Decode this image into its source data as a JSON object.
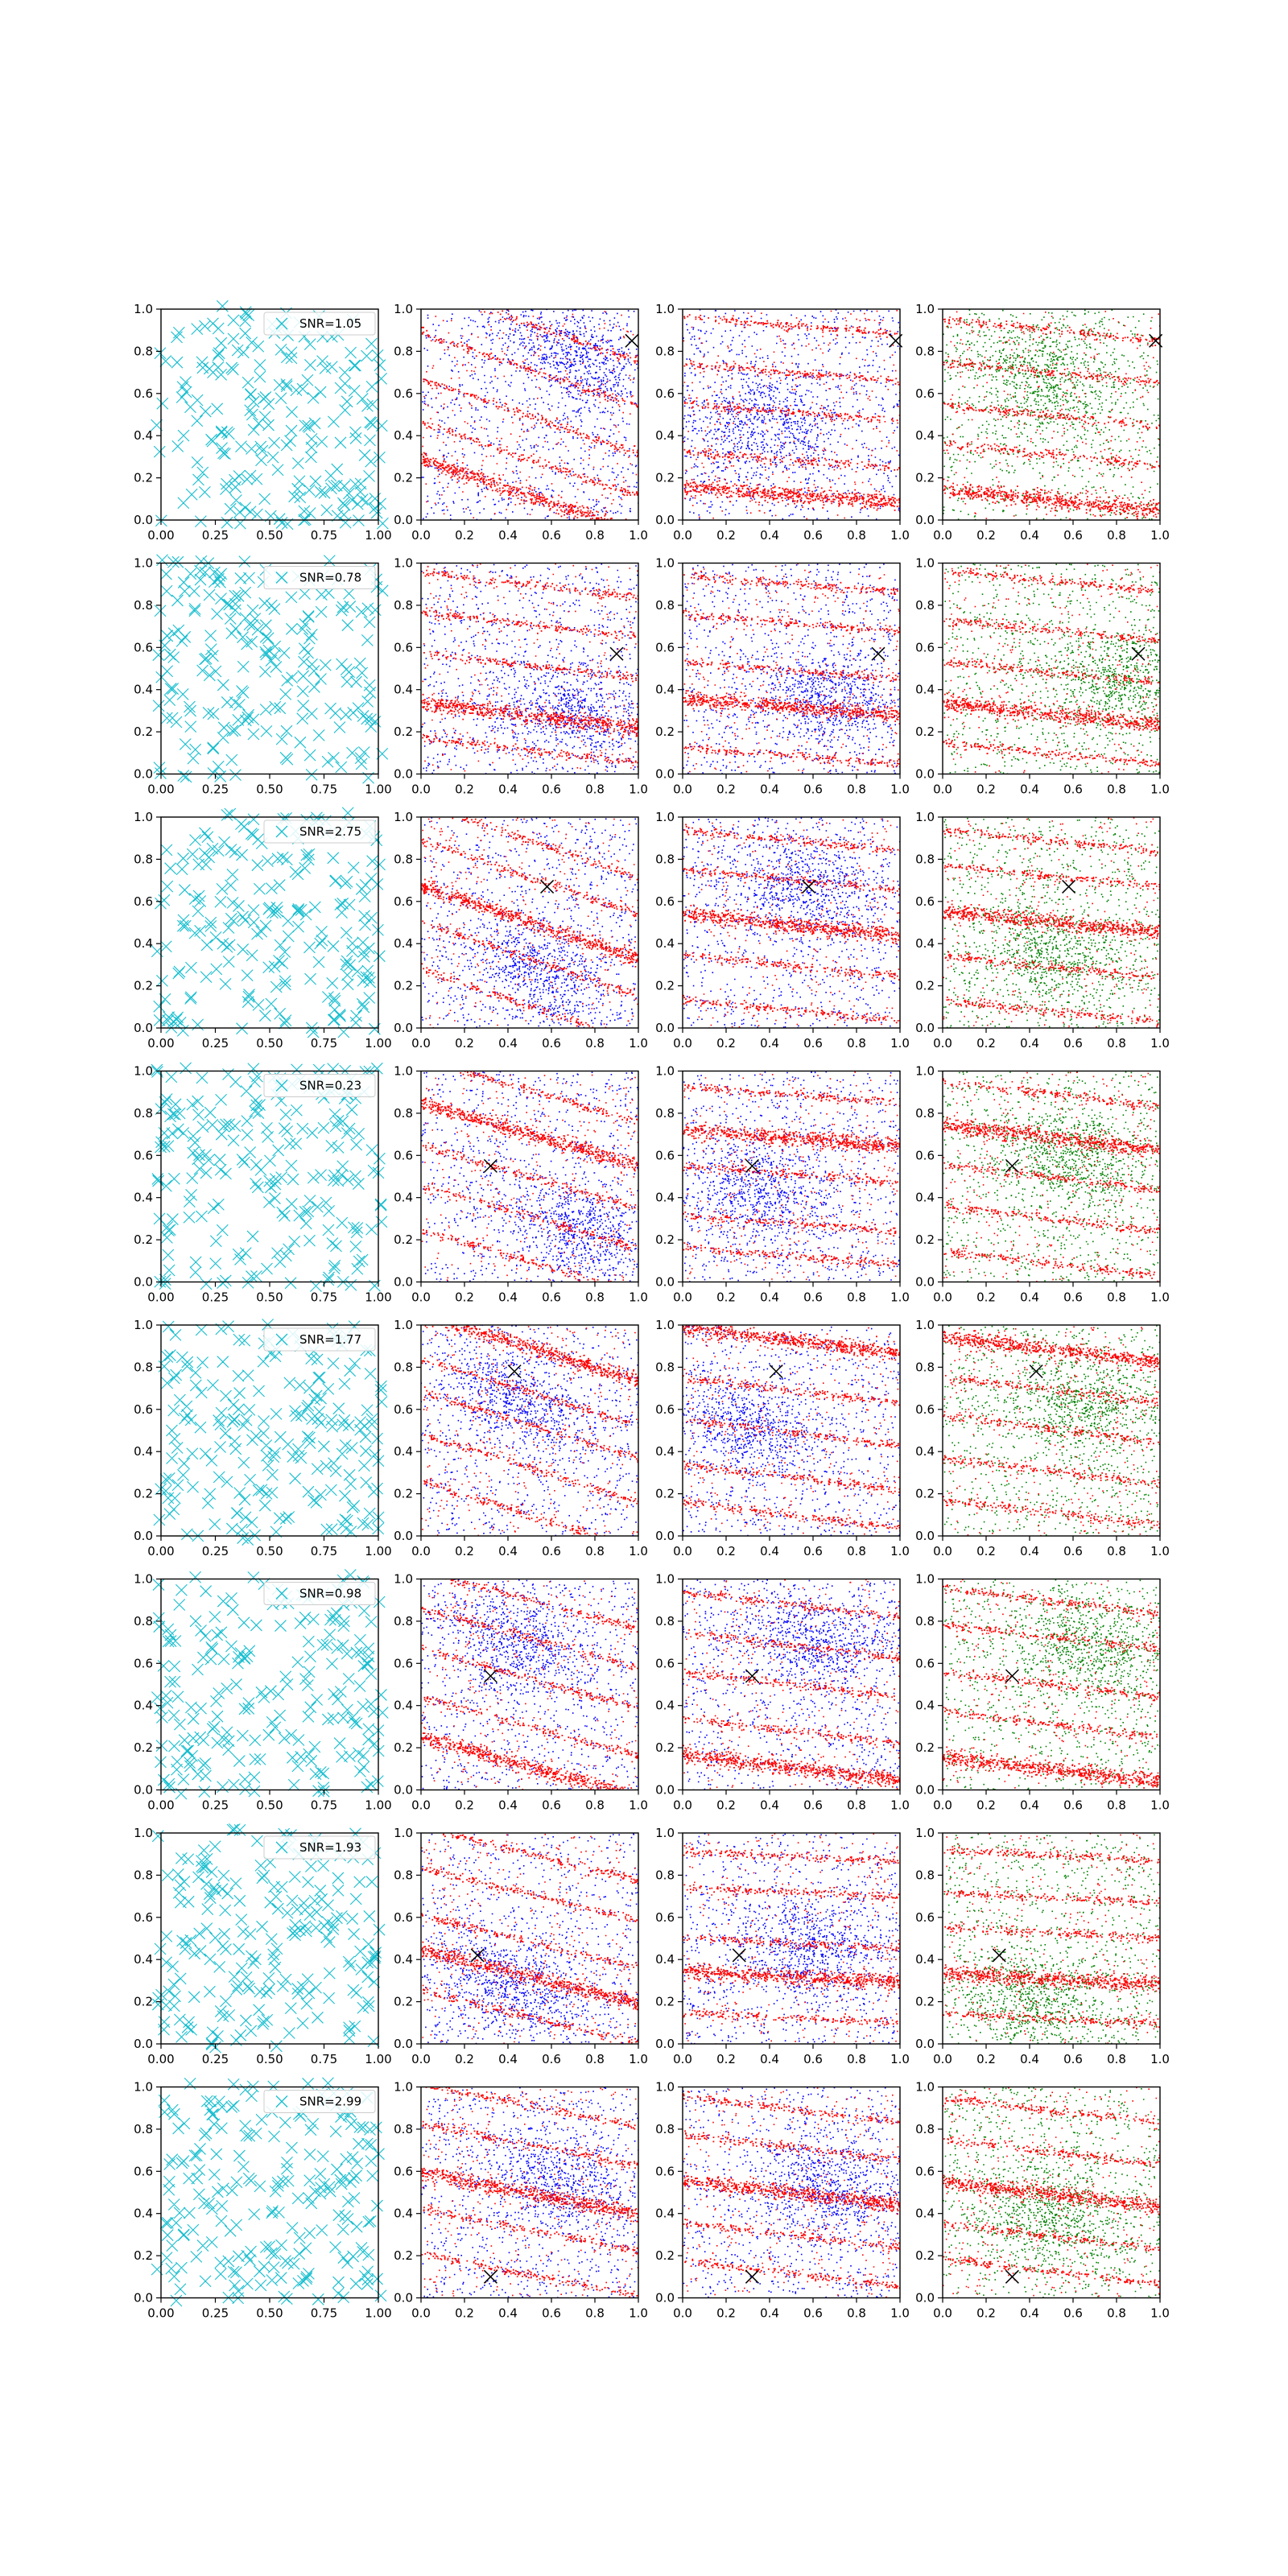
{
  "colors": {
    "random_marker": "#17becf",
    "main_signal": "#ff0000",
    "background_blue": "#0000ff",
    "background_green": "#008000",
    "true_location": "#000000",
    "axes": "#000000"
  },
  "chart_data": {
    "type": "scatter",
    "layout": "8 rows x 4 columns grid of scatter subplots",
    "axes": {
      "xlim": [
        0,
        1.0
      ],
      "ylim": [
        0,
        1.0
      ],
      "column1_xticks": [
        "0.00",
        "0.25",
        "0.50",
        "0.75",
        "1.00"
      ],
      "other_xticks": [
        "0.0",
        "0.2",
        "0.4",
        "0.6",
        "0.8",
        "1.0"
      ],
      "yticks": [
        "0.0",
        "0.2",
        "0.4",
        "0.6",
        "0.8",
        "1.0"
      ],
      "grid": false
    },
    "columns": [
      {
        "name": "random_crosses",
        "marker": "x",
        "color": "random_marker",
        "legend_placement": "top-right"
      },
      {
        "name": "signal_vs_blue_background",
        "marker": "dot",
        "colors": [
          "main_signal",
          "background_blue"
        ]
      },
      {
        "name": "signal_vs_blue_background_alt",
        "marker": "dot",
        "colors": [
          "main_signal",
          "background_blue"
        ]
      },
      {
        "name": "signal_vs_green_background",
        "marker": "dot",
        "colors": [
          "main_signal",
          "background_green"
        ]
      }
    ],
    "rows": [
      {
        "legend": "SNR=1.05",
        "true_point": {
          "col2": [
            0.97,
            0.85
          ],
          "col3": [
            0.98,
            0.85
          ],
          "col4": [
            0.98,
            0.85
          ]
        },
        "stripe_slopes": [
          -0.35,
          -0.08,
          -0.1
        ]
      },
      {
        "legend": "SNR=0.78",
        "true_point": {
          "col2": [
            0.9,
            0.57
          ],
          "col3": [
            0.9,
            0.57
          ],
          "col4": [
            0.9,
            0.57
          ]
        },
        "stripe_slopes": [
          -0.12,
          -0.08,
          -0.1
        ]
      },
      {
        "legend": "SNR=2.75",
        "true_point": {
          "col2": [
            0.58,
            0.67
          ],
          "col3": [
            0.58,
            0.67
          ],
          "col4": [
            0.58,
            0.67
          ]
        },
        "stripe_slopes": [
          -0.35,
          -0.1,
          -0.1
        ]
      },
      {
        "legend": "SNR=0.23",
        "true_point": {
          "col2": [
            0.32,
            0.55
          ],
          "col3": [
            0.32,
            0.55
          ],
          "col4": [
            0.32,
            0.55
          ]
        },
        "stripe_slopes": [
          -0.3,
          -0.08,
          -0.12
        ]
      },
      {
        "legend": "SNR=1.77",
        "true_point": {
          "col2": [
            0.43,
            0.78
          ],
          "col3": [
            0.43,
            0.78
          ],
          "col4": [
            0.43,
            0.78
          ]
        },
        "stripe_slopes": [
          -0.32,
          -0.12,
          -0.12
        ]
      },
      {
        "legend": "SNR=0.98",
        "true_point": {
          "col2": [
            0.32,
            0.54
          ],
          "col3": [
            0.32,
            0.54
          ],
          "col4": [
            0.32,
            0.54
          ]
        },
        "stripe_slopes": [
          -0.28,
          -0.12,
          -0.12
        ]
      },
      {
        "legend": "SNR=1.93",
        "true_point": {
          "col2": [
            0.26,
            0.42
          ],
          "col3": [
            0.26,
            0.42
          ],
          "col4": [
            0.26,
            0.42
          ]
        },
        "stripe_slopes": [
          -0.25,
          -0.05,
          -0.05
        ]
      },
      {
        "legend": "SNR=2.99",
        "true_point": {
          "col2": [
            0.32,
            0.1
          ],
          "col3": [
            0.32,
            0.1
          ],
          "col4": [
            0.32,
            0.1
          ]
        },
        "stripe_slopes": [
          -0.2,
          -0.12,
          -0.12
        ]
      }
    ]
  }
}
